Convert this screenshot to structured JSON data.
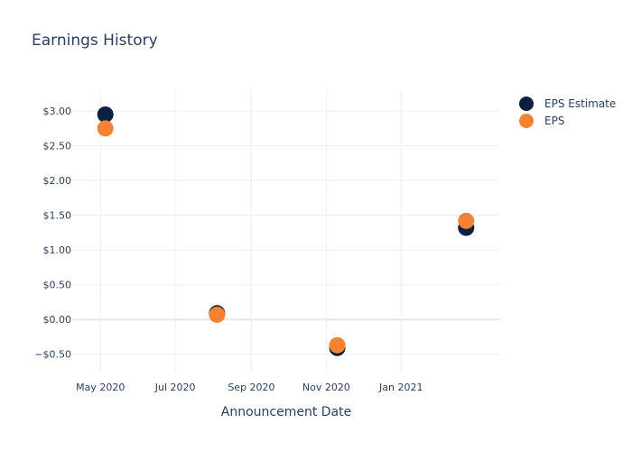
{
  "chart_data": {
    "type": "scatter",
    "title": "Earnings History",
    "xlabel": "Announcement Date",
    "ylabel": "",
    "xlim": [
      "2020-04-08",
      "2021-03-22"
    ],
    "ylim": [
      -0.75,
      3.3
    ],
    "x_ticks": [
      {
        "date": "2020-05-01",
        "label": "May 2020"
      },
      {
        "date": "2020-07-01",
        "label": "Jul 2020"
      },
      {
        "date": "2020-09-01",
        "label": "Sep 2020"
      },
      {
        "date": "2020-11-01",
        "label": "Nov 2020"
      },
      {
        "date": "2021-01-01",
        "label": "Jan 2021"
      }
    ],
    "y_ticks": [
      {
        "value": 3.0,
        "label": "$3.00"
      },
      {
        "value": 2.5,
        "label": "$2.50"
      },
      {
        "value": 2.0,
        "label": "$2.00"
      },
      {
        "value": 1.5,
        "label": "$1.50"
      },
      {
        "value": 1.0,
        "label": "$1.00"
      },
      {
        "value": 0.5,
        "label": "$0.50"
      },
      {
        "value": 0.0,
        "label": "$0.00"
      },
      {
        "value": -0.5,
        "label": "−$0.50"
      }
    ],
    "grid": true,
    "legend_position": "top-right",
    "series": [
      {
        "name": "EPS Estimate",
        "color": "#0b1f3f",
        "points": [
          {
            "x": "2020-05-05",
            "y": 2.95
          },
          {
            "x": "2020-08-04",
            "y": 0.09
          },
          {
            "x": "2020-11-10",
            "y": -0.41
          },
          {
            "x": "2021-02-23",
            "y": 1.32
          }
        ]
      },
      {
        "name": "EPS",
        "color": "#f58232",
        "points": [
          {
            "x": "2020-05-05",
            "y": 2.75
          },
          {
            "x": "2020-08-04",
            "y": 0.07
          },
          {
            "x": "2020-11-10",
            "y": -0.37
          },
          {
            "x": "2021-02-23",
            "y": 1.42
          }
        ]
      }
    ]
  }
}
